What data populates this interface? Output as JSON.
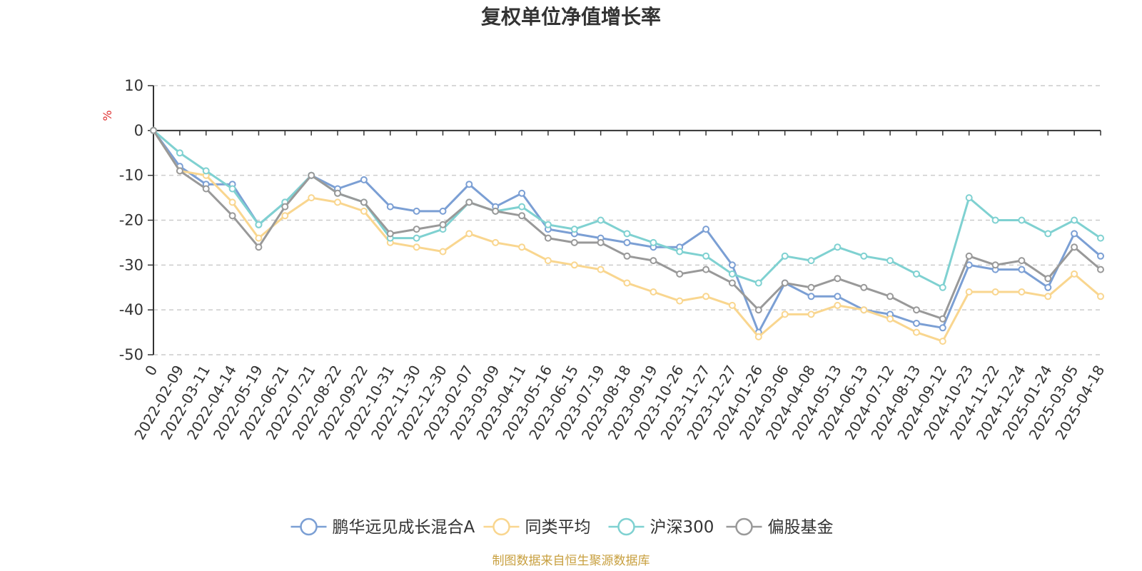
{
  "chart_data": {
    "type": "line",
    "title": "复权单位净值增长率",
    "ylabel": "%",
    "xlabel": "",
    "ylim": [
      -50,
      10
    ],
    "yticks": [
      10,
      0,
      -10,
      -20,
      -30,
      -40,
      -50
    ],
    "grid": true,
    "legend_position": "bottom",
    "categories": [
      "0",
      "2022-02-09",
      "2022-03-11",
      "2022-04-14",
      "2022-05-19",
      "2022-06-21",
      "2022-07-21",
      "2022-08-22",
      "2022-09-22",
      "2022-10-31",
      "2022-11-30",
      "2022-12-30",
      "2023-02-07",
      "2023-03-09",
      "2023-04-11",
      "2023-05-16",
      "2023-06-15",
      "2023-07-19",
      "2023-08-18",
      "2023-09-19",
      "2023-10-26",
      "2023-11-27",
      "2023-12-27",
      "2024-01-26",
      "2024-03-06",
      "2024-04-08",
      "2024-05-13",
      "2024-06-13",
      "2024-07-12",
      "2024-08-13",
      "2024-09-12",
      "2024-10-23",
      "2024-11-22",
      "2024-12-24",
      "2025-01-24",
      "2025-03-05",
      "2025-04-18"
    ],
    "series": [
      {
        "name": "鹏华远见成长混合A",
        "color": "#7b9fd4",
        "values": [
          0,
          -8,
          -12,
          -12,
          -21,
          -16,
          -10,
          -13,
          -11,
          -17,
          -18,
          -18,
          -12,
          -17,
          -14,
          -22,
          -23,
          -24,
          -25,
          -26,
          -26,
          -22,
          -30,
          -45,
          -34,
          -37,
          -37,
          -40,
          -41,
          -43,
          -44,
          -30,
          -31,
          -31,
          -35,
          -23,
          -28
        ]
      },
      {
        "name": "同类平均",
        "color": "#f9d68f",
        "values": [
          0,
          -9,
          -10,
          -16,
          -24,
          -19,
          -15,
          -16,
          -18,
          -25,
          -26,
          -27,
          -23,
          -25,
          -26,
          -29,
          -30,
          -31,
          -34,
          -36,
          -38,
          -37,
          -39,
          -46,
          -41,
          -41,
          -39,
          -40,
          -42,
          -45,
          -47,
          -36,
          -36,
          -36,
          -37,
          -32,
          -37
        ]
      },
      {
        "name": "沪深300",
        "color": "#7fd1d1",
        "values": [
          0,
          -5,
          -9,
          -13,
          -21,
          -16,
          -10,
          -14,
          -16,
          -24,
          -24,
          -22,
          -16,
          -18,
          -17,
          -21,
          -22,
          -20,
          -23,
          -25,
          -27,
          -28,
          -32,
          -34,
          -28,
          -29,
          -26,
          -28,
          -29,
          -32,
          -35,
          -15,
          -20,
          -20,
          -23,
          -20,
          -24
        ]
      },
      {
        "name": "偏股基金",
        "color": "#999999",
        "values": [
          0,
          -9,
          -13,
          -19,
          -26,
          -17,
          -10,
          -14,
          -16,
          -23,
          -22,
          -21,
          -16,
          -18,
          -19,
          -24,
          -25,
          -25,
          -28,
          -29,
          -32,
          -31,
          -34,
          -40,
          -34,
          -35,
          -33,
          -35,
          -37,
          -40,
          -42,
          -28,
          -30,
          -29,
          -33,
          -26,
          -31
        ]
      }
    ],
    "source_note": "制图数据来自恒生聚源数据库"
  }
}
